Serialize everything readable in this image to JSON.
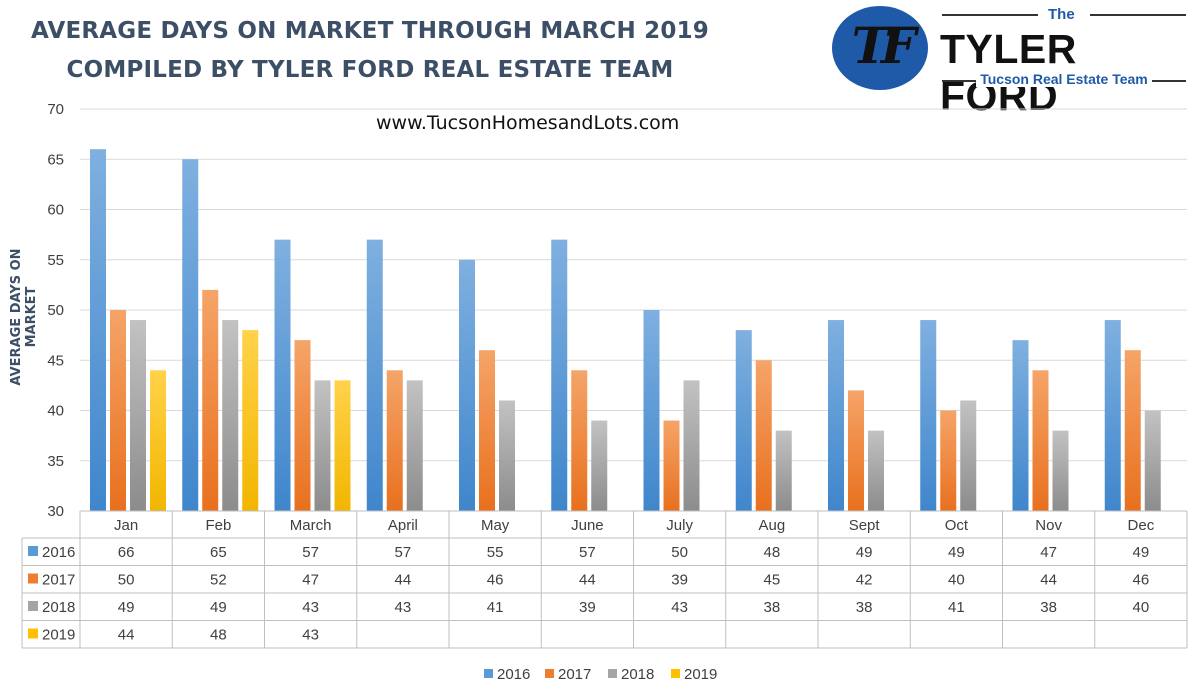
{
  "header": {
    "title_line1": "AVERAGE DAYS ON MARKET THROUGH MARCH 2019",
    "title_line2": "COMPILED BY TYLER FORD REAL ESTATE TEAM",
    "website": "www.TucsonHomesandLots.com"
  },
  "logo": {
    "monogram": "TF",
    "the": "The",
    "name": "TYLER FORD",
    "tagline": "Tucson Real Estate Team"
  },
  "chart_data": {
    "type": "bar",
    "title": "AVERAGE DAYS ON MARKET THROUGH MARCH 2019",
    "ylabel": "AVERAGE DAYS ON MARKET",
    "xlabel": "",
    "ylim": [
      30,
      70
    ],
    "yticks": [
      30,
      35,
      40,
      45,
      50,
      55,
      60,
      65,
      70
    ],
    "grid": true,
    "legend_position": "bottom",
    "data_table": true,
    "categories": [
      "Jan",
      "Feb",
      "March",
      "April",
      "May",
      "June",
      "July",
      "Aug",
      "Sept",
      "Oct",
      "Nov",
      "Dec"
    ],
    "series": [
      {
        "name": "2016",
        "color": "#5b9bd5",
        "values": [
          66,
          65,
          57,
          57,
          55,
          57,
          50,
          48,
          49,
          49,
          47,
          49
        ]
      },
      {
        "name": "2017",
        "color": "#ed7d31",
        "values": [
          50,
          52,
          47,
          44,
          46,
          44,
          39,
          45,
          42,
          40,
          44,
          46
        ]
      },
      {
        "name": "2018",
        "color": "#a5a5a5",
        "values": [
          49,
          49,
          43,
          43,
          41,
          39,
          43,
          38,
          38,
          41,
          38,
          40
        ]
      },
      {
        "name": "2019",
        "color": "#ffc000",
        "values": [
          44,
          48,
          43,
          null,
          null,
          null,
          null,
          null,
          null,
          null,
          null,
          null
        ]
      }
    ]
  }
}
